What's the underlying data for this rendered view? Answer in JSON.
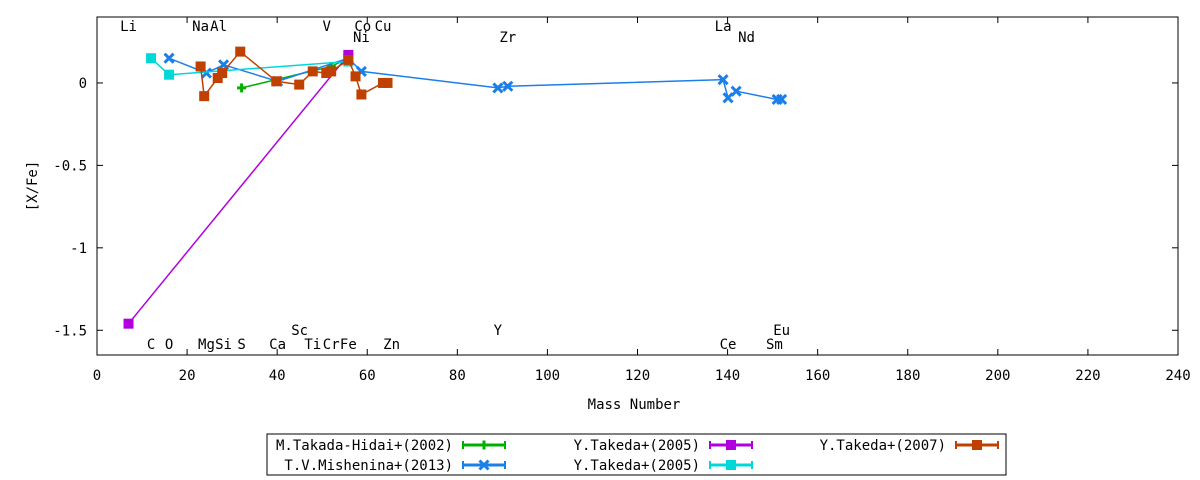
{
  "chart_data": {
    "type": "line",
    "xlabel": "Mass Number",
    "ylabel": "[X/Fe]",
    "xlim": [
      0,
      240
    ],
    "ylim": [
      -1.65,
      0.4
    ],
    "x_ticks": [
      0,
      20,
      40,
      60,
      80,
      100,
      120,
      140,
      160,
      180,
      200,
      220,
      240
    ],
    "y_ticks": [
      0,
      -0.5,
      -1,
      -1.5
    ],
    "grid": false,
    "legend_position": "bottom",
    "element_labels_top": [
      {
        "label": "Li",
        "x": 7
      },
      {
        "label": "Na",
        "x": 23
      },
      {
        "label": "Al",
        "x": 27
      },
      {
        "label": "V",
        "x": 51
      },
      {
        "label": "Co",
        "x": 59
      },
      {
        "label": "Cu",
        "x": 63.5
      },
      {
        "label": "La",
        "x": 139
      },
      {
        "label": "Ni",
        "x": 58.7
      },
      {
        "label": "Zr",
        "x": 91.2
      },
      {
        "label": "Nd",
        "x": 144.2
      }
    ],
    "element_labels_bottom": [
      {
        "label": "Sc",
        "x": 45
      },
      {
        "label": "Y",
        "x": 89
      },
      {
        "label": "Eu",
        "x": 152
      },
      {
        "label": "C",
        "x": 12
      },
      {
        "label": "O",
        "x": 16
      },
      {
        "label": "Mg",
        "x": 24.3
      },
      {
        "label": "Si",
        "x": 28.1
      },
      {
        "label": "S",
        "x": 32.1
      },
      {
        "label": "Ca",
        "x": 40.1
      },
      {
        "label": "Ti",
        "x": 47.9
      },
      {
        "label": "Cr",
        "x": 52
      },
      {
        "label": "Fe",
        "x": 55.8
      },
      {
        "label": "Zn",
        "x": 65.4
      },
      {
        "label": "Ce",
        "x": 140.1
      },
      {
        "label": "Sm",
        "x": 150.4
      }
    ],
    "series": [
      {
        "name": "M.Takada-Hidai+(2002)",
        "color": "#00b000",
        "marker": "plus",
        "points": [
          [
            32.1,
            -0.03
          ],
          [
            52.0,
            0.1
          ],
          [
            55.8,
            0.15
          ]
        ]
      },
      {
        "name": "T.V.Mishenina+(2013)",
        "color": "#1a7fe8",
        "marker": "x",
        "points": [
          [
            16.0,
            0.15
          ],
          [
            24.3,
            0.06
          ],
          [
            28.1,
            0.11
          ],
          [
            40.1,
            0.01
          ],
          [
            55.8,
            0.15
          ],
          [
            58.7,
            0.07
          ],
          [
            89.0,
            -0.03
          ],
          [
            91.2,
            -0.02
          ],
          [
            139.0,
            0.02
          ],
          [
            140.1,
            -0.09
          ],
          [
            141.9,
            -0.05
          ],
          [
            151.0,
            -0.1
          ],
          [
            152.0,
            -0.1
          ]
        ]
      },
      {
        "name": "Y.Takeda+(2005)",
        "color": "#b000e0",
        "marker": "square",
        "points": [
          [
            7.0,
            -1.46
          ],
          [
            55.8,
            0.17
          ]
        ]
      },
      {
        "name": "Y.Takeda+(2005)",
        "color": "#00d8d8",
        "marker": "square",
        "points": [
          [
            12.0,
            0.15
          ],
          [
            16.0,
            0.05
          ],
          [
            55.8,
            0.13
          ]
        ]
      },
      {
        "name": "Y.Takeda+(2007)",
        "color": "#c04000",
        "marker": "square",
        "points": [
          [
            23.0,
            0.1
          ],
          [
            23.8,
            -0.08
          ],
          [
            26.8,
            0.03
          ],
          [
            27.8,
            0.06
          ],
          [
            31.8,
            0.19
          ],
          [
            39.8,
            0.01
          ],
          [
            44.9,
            -0.01
          ],
          [
            47.9,
            0.07
          ],
          [
            50.9,
            0.06
          ],
          [
            52.0,
            0.07
          ],
          [
            55.8,
            0.14
          ],
          [
            57.4,
            0.04
          ],
          [
            58.7,
            -0.07
          ],
          [
            63.5,
            0.0
          ],
          [
            64.5,
            0.0
          ]
        ]
      }
    ]
  }
}
